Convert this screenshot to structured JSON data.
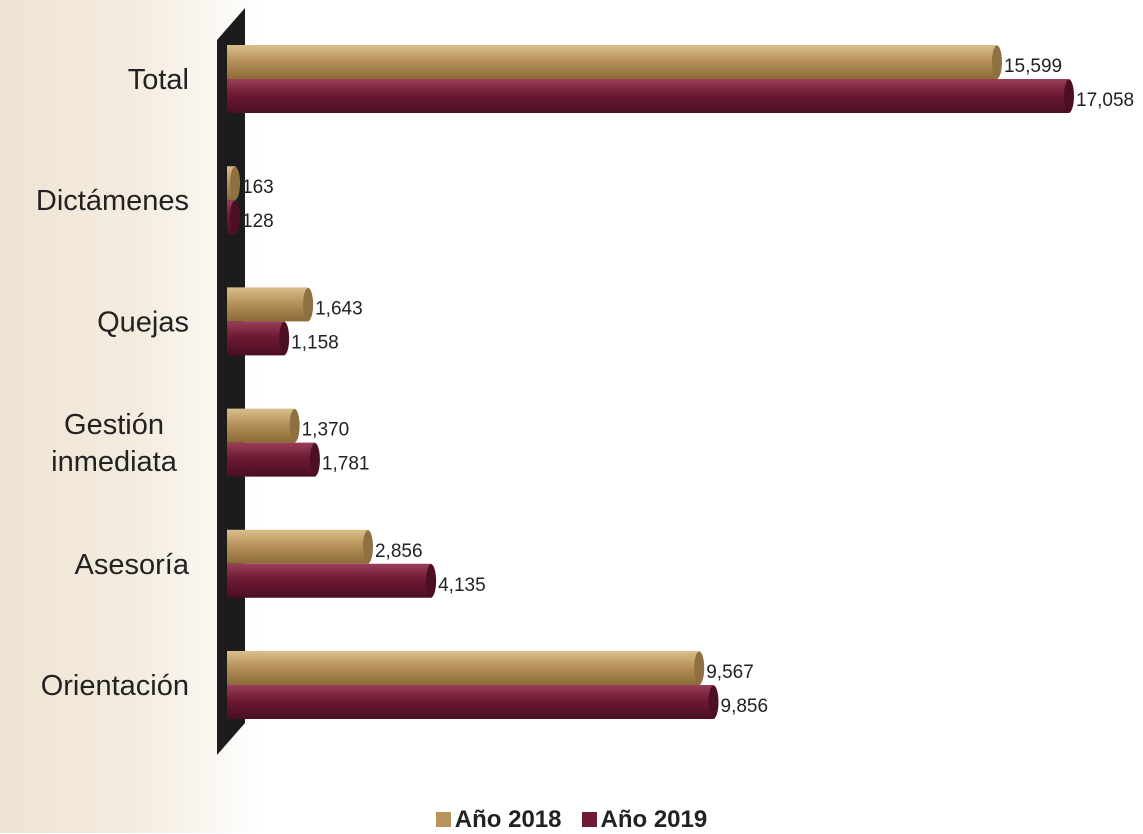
{
  "chart_data": {
    "type": "bar",
    "orientation": "horizontal",
    "categories": [
      "Total",
      "Dictámenes",
      "Quejas",
      "Gestión inmediata",
      "Asesoría",
      "Orientación"
    ],
    "category_lines": [
      [
        "Total"
      ],
      [
        "Dictámenes"
      ],
      [
        "Quejas"
      ],
      [
        "Gestión",
        "inmediata"
      ],
      [
        "Asesoría"
      ],
      [
        "Orientación"
      ]
    ],
    "series": [
      {
        "name": "Año 2018",
        "color": "#b8935a",
        "values": [
          15599,
          163,
          1643,
          1370,
          2856,
          9567
        ],
        "labels": [
          "15,599",
          "163",
          "1,643",
          "1,370",
          "2,856",
          "9,567"
        ]
      },
      {
        "name": "Año 2019",
        "color": "#6e1a33",
        "values": [
          17058,
          128,
          1158,
          1781,
          4135,
          9856
        ],
        "labels": [
          "17,058",
          "128",
          "1,158",
          "1,781",
          "4,135",
          "9,856"
        ]
      }
    ],
    "xlim": [
      0,
      18000
    ],
    "legend_position": "bottom-center",
    "grid": false
  }
}
